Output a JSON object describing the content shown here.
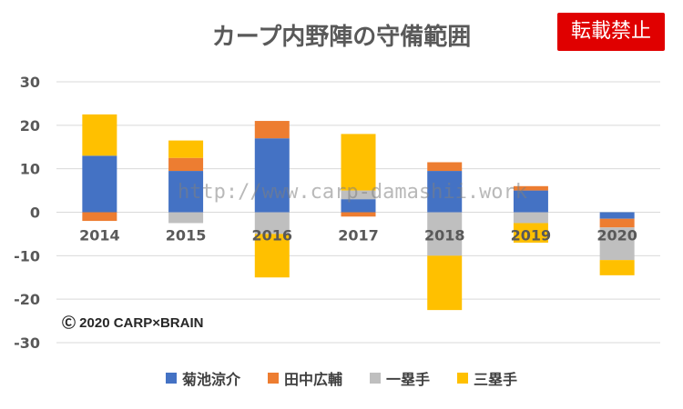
{
  "title": "カープ内野陣の守備範囲",
  "badge": "転載禁止",
  "watermark": "http://www.carp-damashii.work",
  "copyright": "Ⓒ 2020 CARP×BRAIN",
  "legend": [
    {
      "label": "菊池涼介",
      "color": "#4472c4"
    },
    {
      "label": "田中広輔",
      "color": "#ed7d31"
    },
    {
      "label": "一塁手",
      "color": "#bfbfbf"
    },
    {
      "label": "三塁手",
      "color": "#ffc000"
    }
  ],
  "chart_data": {
    "type": "bar",
    "stacked": true,
    "categories": [
      "2014",
      "2015",
      "2016",
      "2017",
      "2018",
      "2019",
      "2020"
    ],
    "y_ticks": [
      "30",
      "20",
      "10",
      "0",
      "-10",
      "-20",
      "-30"
    ],
    "ylim": [
      -30,
      30
    ],
    "grid": true,
    "legend_position": "bottom",
    "series": [
      {
        "name": "菊池涼介",
        "values": [
          13,
          9.5,
          17,
          3,
          9.5,
          5,
          -1.5
        ],
        "color": "#4472c4"
      },
      {
        "name": "田中広輔",
        "values": [
          -2,
          3,
          4,
          -1,
          2,
          1,
          -2
        ],
        "color": "#ed7d31"
      },
      {
        "name": "一塁手",
        "values": [
          0,
          -2.5,
          -5,
          2,
          -10,
          -2.5,
          -7.5
        ],
        "color": "#bfbfbf"
      },
      {
        "name": "三塁手",
        "values": [
          9.5,
          4,
          -10,
          13,
          -12.5,
          -4.5,
          -3.5
        ],
        "color": "#ffc000"
      }
    ]
  }
}
